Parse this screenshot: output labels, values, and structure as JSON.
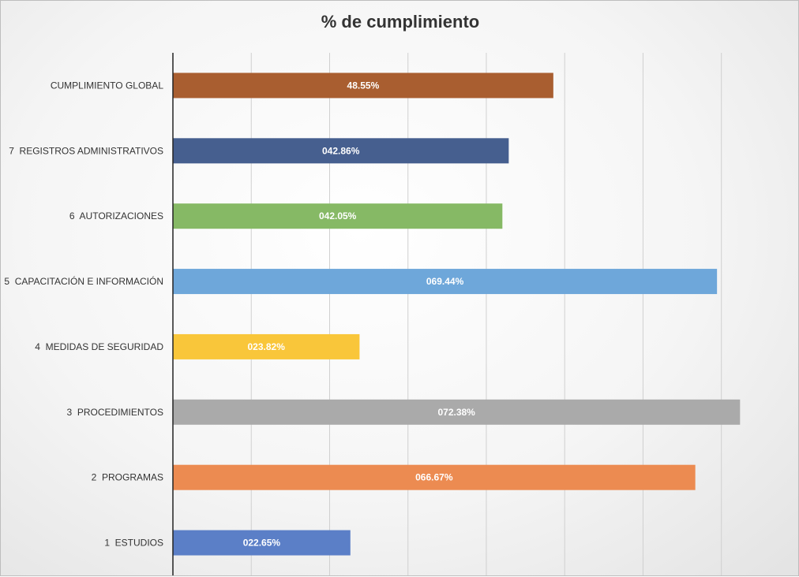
{
  "chart_data": {
    "type": "bar",
    "orientation": "horizontal",
    "title": "% de cumplimiento",
    "xlabel": "",
    "ylabel": "",
    "xlim": [
      0,
      72.8
    ],
    "grid": true,
    "legend": "none",
    "categories": [
      "1  ESTUDIOS",
      "2  PROGRAMAS",
      "3  PROCEDIMIENTOS",
      "4  MEDIDAS DE SEGURIDAD",
      "5  CAPACITACIÓN E INFORMACIÓN",
      "6  AUTORIZACIONES",
      "7  REGISTROS ADMINISTRATIVOS",
      "CUMPLIMIENTO GLOBAL"
    ],
    "values": [
      22.65,
      66.67,
      72.38,
      23.82,
      69.44,
      42.05,
      42.86,
      48.55
    ],
    "data_labels": [
      "022.65%",
      "066.67%",
      "072.38%",
      "023.82%",
      "069.44%",
      "042.05%",
      "042.86%",
      "48.55%"
    ],
    "colors": [
      "#5b7fc7",
      "#ec8b51",
      "#aaaaaa",
      "#f9c63a",
      "#6ea7da",
      "#86b965",
      "#465f8f",
      "#a95e30"
    ]
  }
}
